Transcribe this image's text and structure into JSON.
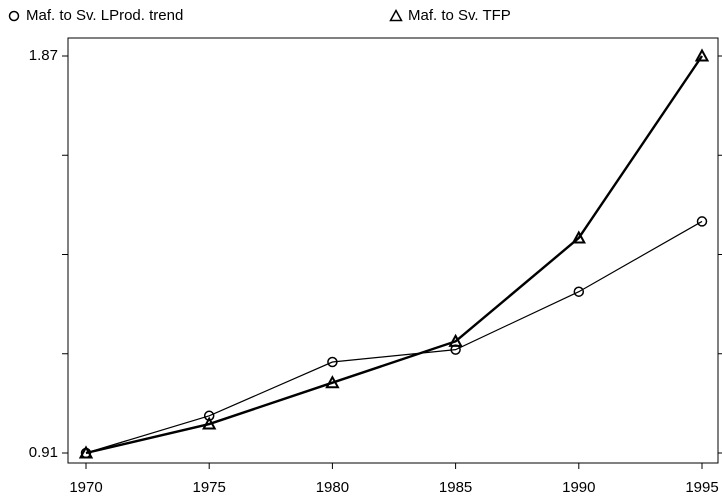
{
  "chart_data": {
    "type": "line",
    "x": [
      1970,
      1975,
      1980,
      1985,
      1990,
      1995
    ],
    "series": [
      {
        "name": "Maf. to Sv. LProd. trend",
        "color": "#000000",
        "marker": "circle",
        "width": 1.2,
        "values": [
          0.91,
          1.0,
          1.13,
          1.16,
          1.3,
          1.47
        ]
      },
      {
        "name": "Maf. to Sv. TFP",
        "color": "#000000",
        "marker": "triangle",
        "width": 2.4,
        "values": [
          0.91,
          0.98,
          1.08,
          1.18,
          1.43,
          1.87
        ]
      }
    ],
    "xlim": [
      1970,
      1995
    ],
    "xticks": [
      1970,
      1975,
      1980,
      1985,
      1990,
      1995
    ],
    "ylim": [
      0.91,
      1.87
    ],
    "yticks": [
      0.91,
      {
        "value": 1.15,
        "label": null
      },
      {
        "value": 1.39,
        "label": null
      },
      {
        "value": 1.63,
        "label": null
      },
      1.87
    ],
    "grid": false,
    "legend": "top"
  }
}
